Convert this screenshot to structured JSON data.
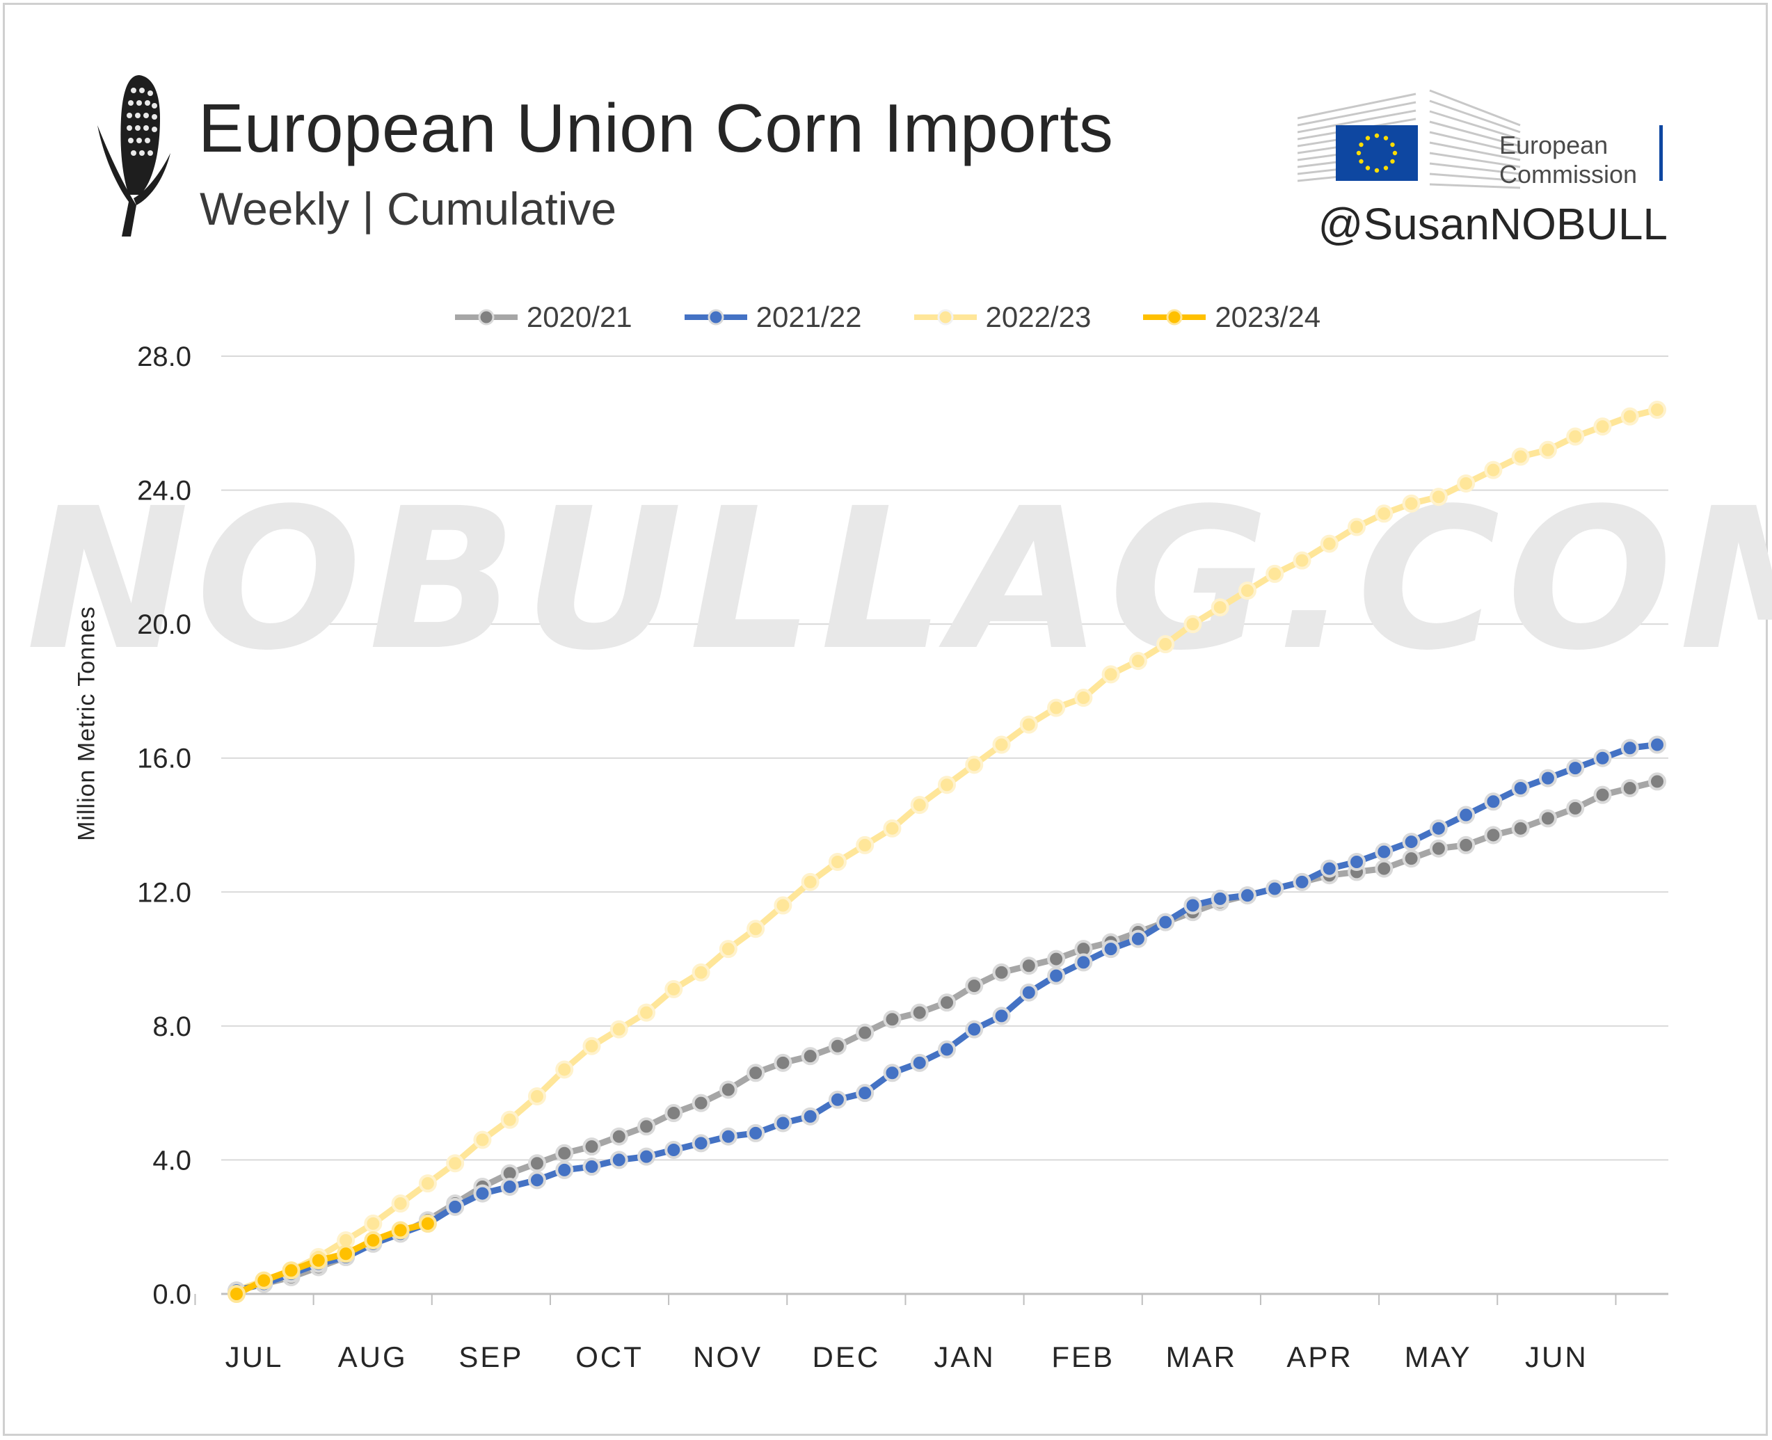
{
  "header": {
    "title": "European Union Corn Imports",
    "subtitle": "Weekly | Cumulative",
    "logo_text_line1": "European",
    "logo_text_line2": "Commission",
    "handle": "@SusanNOBULL",
    "watermark": "NOBULLAG.COM"
  },
  "chart_data": {
    "type": "line",
    "ylabel": "Million Metric Tonnes",
    "ylim": [
      0,
      28
    ],
    "yticks": [
      "0.0",
      "4.0",
      "8.0",
      "12.0",
      "16.0",
      "20.0",
      "24.0",
      "28.0"
    ],
    "month_labels": [
      "JUL",
      "AUG",
      "SEP",
      "OCT",
      "NOV",
      "DEC",
      "JAN",
      "FEB",
      "MAR",
      "APR",
      "MAY",
      "JUN"
    ],
    "grid": true,
    "legend_position": "top",
    "series": [
      {
        "name": "2020/21",
        "color": "#a6a6a6",
        "marker_color": "#808080",
        "values": [
          0.1,
          0.3,
          0.5,
          0.8,
          1.1,
          1.5,
          1.8,
          2.2,
          2.7,
          3.2,
          3.6,
          3.9,
          4.2,
          4.4,
          4.7,
          5.0,
          5.4,
          5.7,
          6.1,
          6.6,
          6.9,
          7.1,
          7.4,
          7.8,
          8.2,
          8.4,
          8.7,
          9.2,
          9.6,
          9.8,
          10.0,
          10.3,
          10.5,
          10.8,
          11.1,
          11.4,
          11.7,
          11.9,
          12.1,
          12.3,
          12.5,
          12.6,
          12.7,
          13.0,
          13.3,
          13.4,
          13.7,
          13.9,
          14.2,
          14.5,
          14.9,
          15.1,
          15.3
        ]
      },
      {
        "name": "2021/22",
        "color": "#4472c4",
        "marker_color": "#4472c4",
        "values": [
          0.1,
          0.3,
          0.6,
          0.9,
          1.1,
          1.5,
          1.8,
          2.1,
          2.6,
          3.0,
          3.2,
          3.4,
          3.7,
          3.8,
          4.0,
          4.1,
          4.3,
          4.5,
          4.7,
          4.8,
          5.1,
          5.3,
          5.8,
          6.0,
          6.6,
          6.9,
          7.3,
          7.9,
          8.3,
          9.0,
          9.5,
          9.9,
          10.3,
          10.6,
          11.1,
          11.6,
          11.8,
          11.9,
          12.1,
          12.3,
          12.7,
          12.9,
          13.2,
          13.5,
          13.9,
          14.3,
          14.7,
          15.1,
          15.4,
          15.7,
          16.0,
          16.3,
          16.4
        ]
      },
      {
        "name": "2022/23",
        "color": "#ffe699",
        "marker_color": "#ffe699",
        "values": [
          0.1,
          0.4,
          0.7,
          1.1,
          1.6,
          2.1,
          2.7,
          3.3,
          3.9,
          4.6,
          5.2,
          5.9,
          6.7,
          7.4,
          7.9,
          8.4,
          9.1,
          9.6,
          10.3,
          10.9,
          11.6,
          12.3,
          12.9,
          13.4,
          13.9,
          14.6,
          15.2,
          15.8,
          16.4,
          17.0,
          17.5,
          17.8,
          18.5,
          18.9,
          19.4,
          20.0,
          20.5,
          21.0,
          21.5,
          21.9,
          22.4,
          22.9,
          23.3,
          23.6,
          23.8,
          24.2,
          24.6,
          25.0,
          25.2,
          25.6,
          25.9,
          26.2,
          26.4
        ]
      },
      {
        "name": "2023/24",
        "color": "#ffc000",
        "marker_color": "#ffc000",
        "values": [
          0.0,
          0.4,
          0.7,
          1.0,
          1.2,
          1.6,
          1.9,
          2.1
        ]
      }
    ]
  }
}
